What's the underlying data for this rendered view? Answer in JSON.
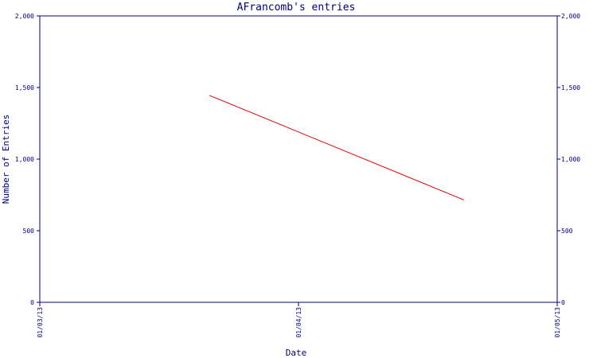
{
  "chart_data": {
    "type": "line",
    "title": "AFrancomb's entries",
    "xlabel": "Date",
    "ylabel": "Number of Entries",
    "x_ticks": [
      "01/03/13",
      "01/04/13",
      "01/05/13"
    ],
    "y_ticks": [
      "0",
      "500",
      "1,000",
      "1,500",
      "2,000"
    ],
    "ylim": [
      0,
      2000
    ],
    "xlim": [
      "2013-03-01",
      "2013-05-01"
    ],
    "grid": false,
    "series": [
      {
        "color": "#e00000",
        "points": [
          {
            "x": "2013-03-21",
            "y": 1445
          },
          {
            "x": "2013-04-20",
            "y": 715
          }
        ]
      }
    ]
  },
  "colors": {
    "axis": "#000080",
    "text": "#000080",
    "line": "#e00000"
  }
}
